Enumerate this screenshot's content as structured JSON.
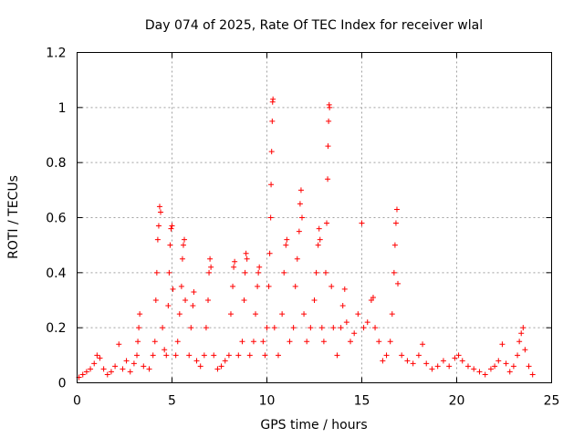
{
  "chart_data": {
    "type": "scatter",
    "title": "Day 074 of 2025, Rate Of TEC Index for receiver wlal",
    "xlabel": "GPS time / hours",
    "ylabel": "ROTI / TECUs",
    "xlim": [
      0,
      25
    ],
    "ylim": [
      0,
      1.2
    ],
    "xticks": [
      0,
      5,
      10,
      15,
      20,
      25
    ],
    "yticks": [
      0,
      0.2,
      0.4,
      0.6,
      0.8,
      1,
      1.2
    ],
    "xtick_labels": [
      "0",
      "5",
      "10",
      "15",
      "20",
      "25"
    ],
    "ytick_labels": [
      "0",
      "0.2",
      "0.4",
      "0.6",
      "0.8",
      "1",
      "1.2"
    ],
    "grid": true,
    "marker": "+",
    "color": "#ff0000",
    "series": [
      {
        "name": "ROTI",
        "points": [
          [
            0.1,
            0.02
          ],
          [
            0.3,
            0.03
          ],
          [
            0.5,
            0.04
          ],
          [
            0.7,
            0.05
          ],
          [
            0.9,
            0.07
          ],
          [
            1.05,
            0.1
          ],
          [
            1.2,
            0.09
          ],
          [
            1.4,
            0.05
          ],
          [
            1.6,
            0.03
          ],
          [
            1.8,
            0.04
          ],
          [
            2.0,
            0.06
          ],
          [
            2.2,
            0.14
          ],
          [
            2.4,
            0.05
          ],
          [
            2.6,
            0.08
          ],
          [
            2.8,
            0.04
          ],
          [
            3.0,
            0.07
          ],
          [
            3.15,
            0.1
          ],
          [
            3.2,
            0.15
          ],
          [
            3.25,
            0.2
          ],
          [
            3.3,
            0.25
          ],
          [
            3.5,
            0.06
          ],
          [
            3.8,
            0.05
          ],
          [
            4.0,
            0.1
          ],
          [
            4.1,
            0.15
          ],
          [
            4.15,
            0.3
          ],
          [
            4.2,
            0.4
          ],
          [
            4.25,
            0.52
          ],
          [
            4.3,
            0.57
          ],
          [
            4.35,
            0.64
          ],
          [
            4.4,
            0.62
          ],
          [
            4.5,
            0.2
          ],
          [
            4.6,
            0.12
          ],
          [
            4.7,
            0.1
          ],
          [
            4.8,
            0.28
          ],
          [
            4.85,
            0.4
          ],
          [
            4.9,
            0.5
          ],
          [
            4.95,
            0.56
          ],
          [
            5.0,
            0.57
          ],
          [
            5.05,
            0.34
          ],
          [
            5.2,
            0.1
          ],
          [
            5.3,
            0.15
          ],
          [
            5.4,
            0.25
          ],
          [
            5.5,
            0.35
          ],
          [
            5.55,
            0.45
          ],
          [
            5.6,
            0.5
          ],
          [
            5.65,
            0.52
          ],
          [
            5.7,
            0.3
          ],
          [
            5.9,
            0.1
          ],
          [
            6.0,
            0.2
          ],
          [
            6.1,
            0.28
          ],
          [
            6.15,
            0.33
          ],
          [
            6.3,
            0.08
          ],
          [
            6.5,
            0.06
          ],
          [
            6.7,
            0.1
          ],
          [
            6.8,
            0.2
          ],
          [
            6.9,
            0.3
          ],
          [
            6.95,
            0.4
          ],
          [
            7.0,
            0.45
          ],
          [
            7.05,
            0.42
          ],
          [
            7.2,
            0.1
          ],
          [
            7.4,
            0.05
          ],
          [
            7.6,
            0.06
          ],
          [
            7.8,
            0.08
          ],
          [
            8.0,
            0.1
          ],
          [
            8.1,
            0.25
          ],
          [
            8.2,
            0.35
          ],
          [
            8.25,
            0.42
          ],
          [
            8.3,
            0.44
          ],
          [
            8.5,
            0.1
          ],
          [
            8.7,
            0.15
          ],
          [
            8.8,
            0.3
          ],
          [
            8.85,
            0.4
          ],
          [
            8.9,
            0.47
          ],
          [
            8.95,
            0.45
          ],
          [
            9.1,
            0.1
          ],
          [
            9.3,
            0.15
          ],
          [
            9.4,
            0.25
          ],
          [
            9.5,
            0.35
          ],
          [
            9.55,
            0.4
          ],
          [
            9.6,
            0.42
          ],
          [
            9.8,
            0.15
          ],
          [
            9.9,
            0.1
          ],
          [
            10.0,
            0.2
          ],
          [
            10.1,
            0.35
          ],
          [
            10.15,
            0.47
          ],
          [
            10.2,
            0.6
          ],
          [
            10.22,
            0.72
          ],
          [
            10.25,
            0.84
          ],
          [
            10.28,
            0.95
          ],
          [
            10.3,
            1.02
          ],
          [
            10.32,
            1.03
          ],
          [
            10.4,
            0.2
          ],
          [
            10.6,
            0.1
          ],
          [
            10.8,
            0.25
          ],
          [
            10.9,
            0.4
          ],
          [
            11.0,
            0.5
          ],
          [
            11.05,
            0.52
          ],
          [
            11.2,
            0.15
          ],
          [
            11.4,
            0.2
          ],
          [
            11.5,
            0.35
          ],
          [
            11.6,
            0.45
          ],
          [
            11.7,
            0.55
          ],
          [
            11.75,
            0.65
          ],
          [
            11.8,
            0.7
          ],
          [
            11.85,
            0.6
          ],
          [
            11.95,
            0.25
          ],
          [
            12.1,
            0.15
          ],
          [
            12.3,
            0.2
          ],
          [
            12.5,
            0.3
          ],
          [
            12.6,
            0.4
          ],
          [
            12.7,
            0.5
          ],
          [
            12.75,
            0.56
          ],
          [
            12.8,
            0.52
          ],
          [
            12.9,
            0.2
          ],
          [
            13.0,
            0.15
          ],
          [
            13.1,
            0.4
          ],
          [
            13.15,
            0.58
          ],
          [
            13.2,
            0.74
          ],
          [
            13.22,
            0.86
          ],
          [
            13.25,
            0.95
          ],
          [
            13.28,
            1.01
          ],
          [
            13.3,
            1.0
          ],
          [
            13.4,
            0.35
          ],
          [
            13.5,
            0.2
          ],
          [
            13.7,
            0.1
          ],
          [
            13.9,
            0.2
          ],
          [
            14.0,
            0.28
          ],
          [
            14.1,
            0.34
          ],
          [
            14.2,
            0.22
          ],
          [
            14.4,
            0.15
          ],
          [
            14.6,
            0.18
          ],
          [
            14.8,
            0.25
          ],
          [
            15.0,
            0.58
          ],
          [
            15.1,
            0.2
          ],
          [
            15.3,
            0.22
          ],
          [
            15.5,
            0.3
          ],
          [
            15.6,
            0.31
          ],
          [
            15.7,
            0.2
          ],
          [
            15.9,
            0.15
          ],
          [
            16.1,
            0.08
          ],
          [
            16.3,
            0.1
          ],
          [
            16.5,
            0.15
          ],
          [
            16.6,
            0.25
          ],
          [
            16.7,
            0.4
          ],
          [
            16.75,
            0.5
          ],
          [
            16.8,
            0.58
          ],
          [
            16.85,
            0.63
          ],
          [
            16.9,
            0.36
          ],
          [
            17.1,
            0.1
          ],
          [
            17.4,
            0.08
          ],
          [
            17.7,
            0.07
          ],
          [
            18.0,
            0.1
          ],
          [
            18.2,
            0.14
          ],
          [
            18.4,
            0.07
          ],
          [
            18.7,
            0.05
          ],
          [
            19.0,
            0.06
          ],
          [
            19.3,
            0.08
          ],
          [
            19.6,
            0.06
          ],
          [
            19.9,
            0.09
          ],
          [
            20.1,
            0.1
          ],
          [
            20.3,
            0.08
          ],
          [
            20.6,
            0.06
          ],
          [
            20.9,
            0.05
          ],
          [
            21.2,
            0.04
          ],
          [
            21.5,
            0.03
          ],
          [
            21.8,
            0.05
          ],
          [
            22.0,
            0.06
          ],
          [
            22.2,
            0.08
          ],
          [
            22.4,
            0.14
          ],
          [
            22.6,
            0.07
          ],
          [
            22.8,
            0.04
          ],
          [
            23.0,
            0.06
          ],
          [
            23.2,
            0.1
          ],
          [
            23.3,
            0.15
          ],
          [
            23.4,
            0.18
          ],
          [
            23.5,
            0.2
          ],
          [
            23.6,
            0.12
          ],
          [
            23.8,
            0.06
          ],
          [
            24.0,
            0.03
          ]
        ]
      }
    ]
  }
}
